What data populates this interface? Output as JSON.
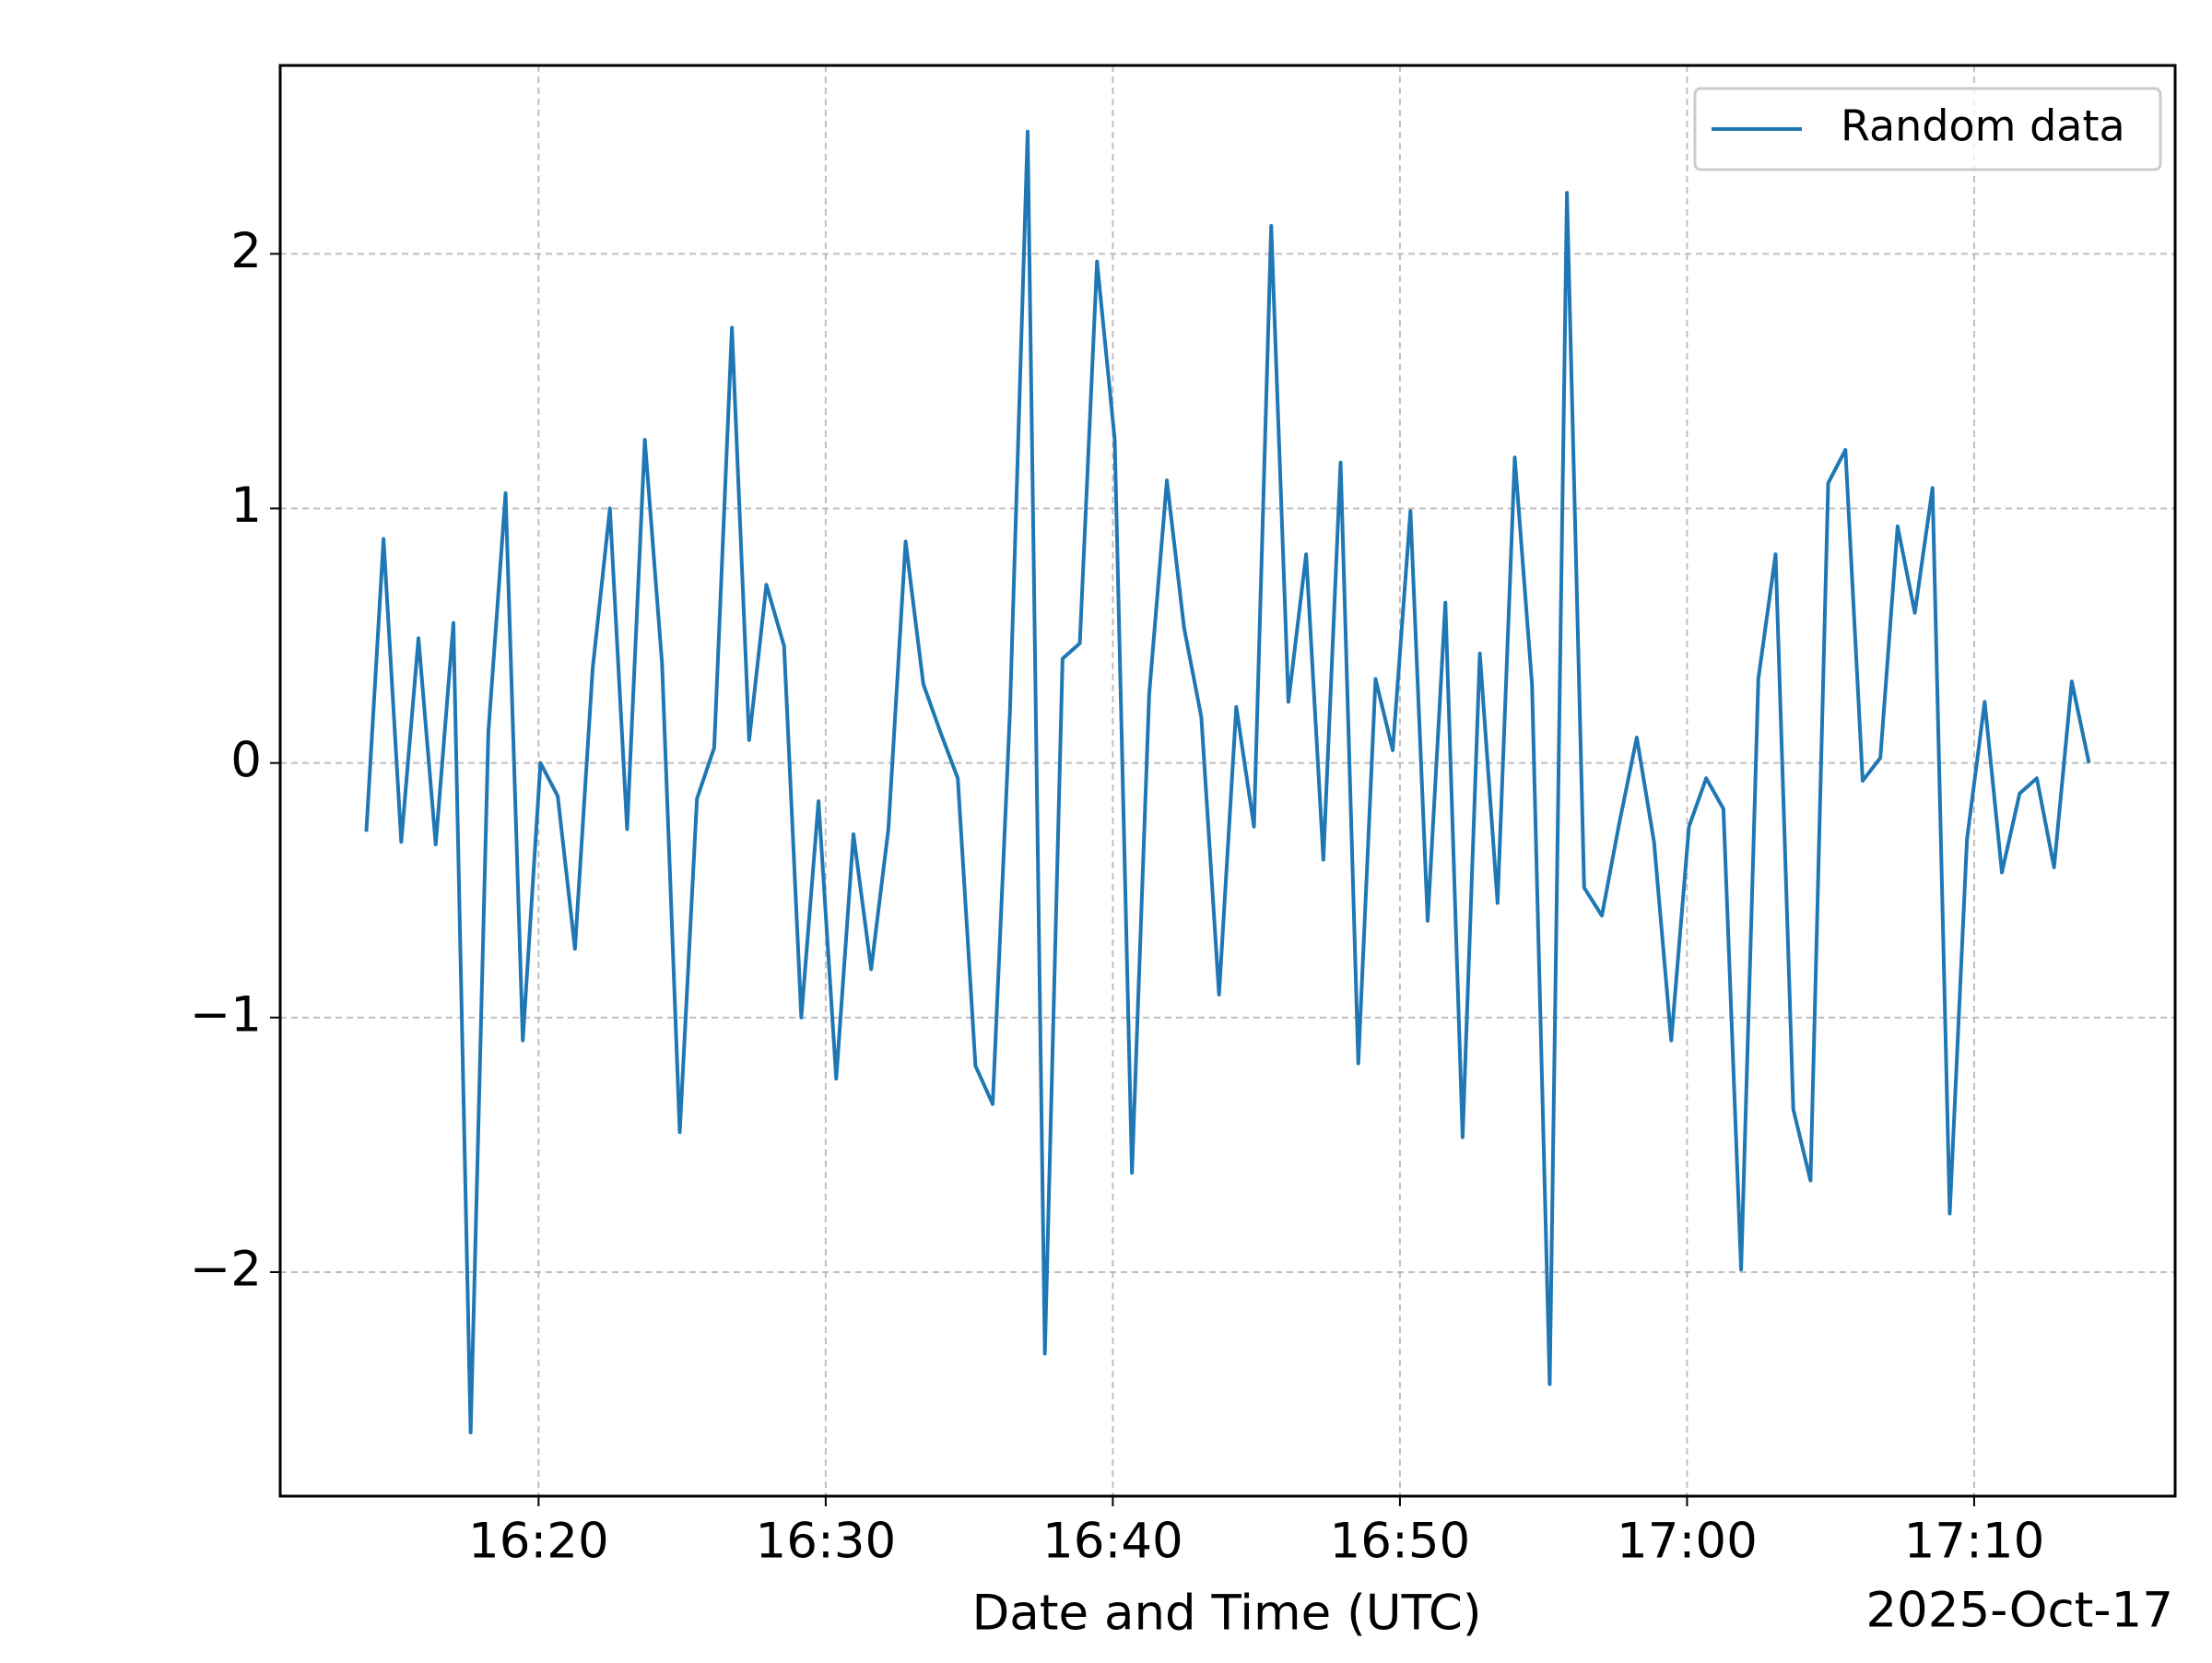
{
  "chart_data": {
    "type": "line",
    "xlabel": "Date and Time (UTC)",
    "x_offset_label": "2025-Oct-17",
    "x": [
      "2025-10-17 16:14:00",
      "2025-10-17 16:14:36",
      "2025-10-17 16:15:13",
      "2025-10-17 16:15:49",
      "2025-10-17 16:16:25",
      "2025-10-17 16:17:02",
      "2025-10-17 16:17:38",
      "2025-10-17 16:18:15",
      "2025-10-17 16:18:51",
      "2025-10-17 16:19:27",
      "2025-10-17 16:20:04",
      "2025-10-17 16:20:40",
      "2025-10-17 16:21:16",
      "2025-10-17 16:21:53",
      "2025-10-17 16:22:29",
      "2025-10-17 16:23:05",
      "2025-10-17 16:23:42",
      "2025-10-17 16:24:18",
      "2025-10-17 16:24:55",
      "2025-10-17 16:25:31",
      "2025-10-17 16:26:07",
      "2025-10-17 16:26:44",
      "2025-10-17 16:27:20",
      "2025-10-17 16:27:56",
      "2025-10-17 16:28:33",
      "2025-10-17 16:29:09",
      "2025-10-17 16:29:45",
      "2025-10-17 16:30:22",
      "2025-10-17 16:30:58",
      "2025-10-17 16:31:35",
      "2025-10-17 16:32:11",
      "2025-10-17 16:32:47",
      "2025-10-17 16:33:24",
      "2025-10-17 16:34:00",
      "2025-10-17 16:34:36",
      "2025-10-17 16:35:13",
      "2025-10-17 16:35:49",
      "2025-10-17 16:36:25",
      "2025-10-17 16:37:02",
      "2025-10-17 16:37:38",
      "2025-10-17 16:38:15",
      "2025-10-17 16:38:51",
      "2025-10-17 16:39:27",
      "2025-10-17 16:40:04",
      "2025-10-17 16:40:40",
      "2025-10-17 16:41:16",
      "2025-10-17 16:41:53",
      "2025-10-17 16:42:29",
      "2025-10-17 16:43:05",
      "2025-10-17 16:43:42",
      "2025-10-17 16:44:18",
      "2025-10-17 16:44:55",
      "2025-10-17 16:45:31",
      "2025-10-17 16:46:07",
      "2025-10-17 16:46:44",
      "2025-10-17 16:47:20",
      "2025-10-17 16:47:56",
      "2025-10-17 16:48:33",
      "2025-10-17 16:49:09",
      "2025-10-17 16:49:45",
      "2025-10-17 16:50:22",
      "2025-10-17 16:50:58",
      "2025-10-17 16:51:35",
      "2025-10-17 16:52:11",
      "2025-10-17 16:52:47",
      "2025-10-17 16:53:24",
      "2025-10-17 16:54:00",
      "2025-10-17 16:54:36",
      "2025-10-17 16:55:13",
      "2025-10-17 16:55:49",
      "2025-10-17 16:56:25",
      "2025-10-17 16:57:02",
      "2025-10-17 16:57:38",
      "2025-10-17 16:58:15",
      "2025-10-17 16:58:51",
      "2025-10-17 16:59:27",
      "2025-10-17 17:00:04",
      "2025-10-17 17:00:40",
      "2025-10-17 17:01:16",
      "2025-10-17 17:01:53",
      "2025-10-17 17:02:29",
      "2025-10-17 17:03:05",
      "2025-10-17 17:03:42",
      "2025-10-17 17:04:18",
      "2025-10-17 17:04:55",
      "2025-10-17 17:05:31",
      "2025-10-17 17:06:07",
      "2025-10-17 17:06:44",
      "2025-10-17 17:07:20",
      "2025-10-17 17:07:56",
      "2025-10-17 17:08:33",
      "2025-10-17 17:09:09",
      "2025-10-17 17:09:45",
      "2025-10-17 17:10:22",
      "2025-10-17 17:10:58",
      "2025-10-17 17:11:35",
      "2025-10-17 17:12:11",
      "2025-10-17 17:12:47",
      "2025-10-17 17:13:24",
      "2025-10-17 17:14:00"
    ],
    "series": [
      {
        "name": "Random data",
        "color": "#1f77b4",
        "values": [
          -0.27,
          0.88,
          -0.31,
          0.49,
          -0.32,
          0.55,
          -2.63,
          0.12,
          1.06,
          -1.09,
          0.0,
          -0.13,
          -0.73,
          0.37,
          1.0,
          -0.26,
          1.27,
          0.39,
          -1.45,
          -0.14,
          0.06,
          1.71,
          0.09,
          0.7,
          0.46,
          -1.0,
          -0.15,
          -1.24,
          -0.28,
          -0.81,
          -0.26,
          0.87,
          0.31,
          0.12,
          -0.06,
          -1.19,
          -1.34,
          0.2,
          2.48,
          -2.32,
          0.41,
          0.47,
          1.97,
          1.27,
          -1.61,
          0.27,
          1.11,
          0.53,
          0.18,
          -0.91,
          0.22,
          -0.25,
          2.11,
          0.24,
          0.82,
          -0.38,
          1.18,
          -1.18,
          0.33,
          0.05,
          0.99,
          -0.62,
          0.63,
          -1.47,
          0.43,
          -0.55,
          1.2,
          0.31,
          -2.44,
          2.24,
          -0.49,
          -0.6,
          -0.24,
          0.1,
          -0.31,
          -1.09,
          -0.25,
          -0.06,
          -0.18,
          -1.99,
          0.33,
          0.82,
          -1.36,
          -1.64,
          1.1,
          1.23,
          -0.07,
          0.02,
          0.93,
          0.59,
          1.08,
          -1.77,
          -0.3,
          0.24,
          -0.43,
          -0.12,
          -0.06,
          -0.41,
          0.32,
          0.0
        ]
      }
    ],
    "xlim": [
      "2025-10-17 16:11:00",
      "2025-10-17 17:17:00"
    ],
    "xticks": [
      {
        "value": "2025-10-17 16:20:00",
        "label": "16:20"
      },
      {
        "value": "2025-10-17 16:30:00",
        "label": "16:30"
      },
      {
        "value": "2025-10-17 16:40:00",
        "label": "16:40"
      },
      {
        "value": "2025-10-17 16:50:00",
        "label": "16:50"
      },
      {
        "value": "2025-10-17 17:00:00",
        "label": "17:00"
      },
      {
        "value": "2025-10-17 17:10:00",
        "label": "17:10"
      }
    ],
    "ylim": [
      -2.88,
      2.74
    ],
    "yticks": [
      {
        "value": -2,
        "label": "−2"
      },
      {
        "value": -1,
        "label": "−1"
      },
      0,
      1,
      2
    ],
    "grid": true,
    "legend": "upper right"
  }
}
